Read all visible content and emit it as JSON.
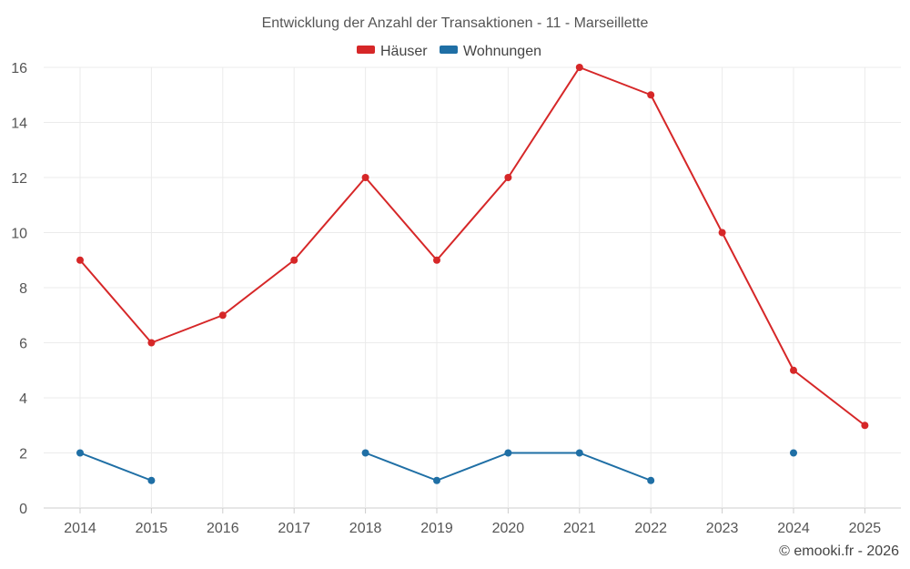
{
  "chart_data": {
    "type": "line",
    "title": "Entwicklung der Anzahl der Transaktionen - 11 - Marseillette",
    "categories": [
      "2014",
      "2015",
      "2016",
      "2017",
      "2018",
      "2019",
      "2020",
      "2021",
      "2022",
      "2023",
      "2024",
      "2025"
    ],
    "series": [
      {
        "name": "Häuser",
        "color": "#d62728",
        "values": [
          9,
          6,
          7,
          9,
          12,
          9,
          12,
          16,
          15,
          10,
          5,
          3
        ]
      },
      {
        "name": "Wohnungen",
        "color": "#1f6fa5",
        "values": [
          2,
          1,
          null,
          null,
          2,
          1,
          2,
          2,
          1,
          null,
          2,
          null
        ]
      }
    ],
    "ylim": [
      0,
      16
    ],
    "yticks": [
      0,
      2,
      4,
      6,
      8,
      10,
      12,
      14,
      16
    ],
    "xlabel": "",
    "ylabel": "",
    "grid": true,
    "legend_position": "top-center"
  },
  "footer": {
    "copyright": "© emooki.fr - 2026"
  }
}
